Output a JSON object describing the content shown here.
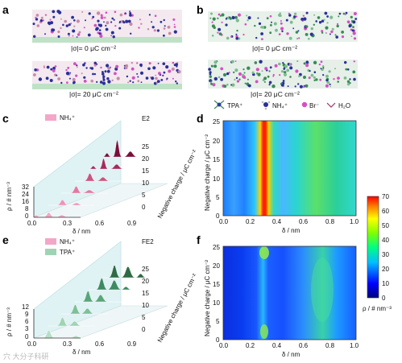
{
  "panels": {
    "a": {
      "letter": "a",
      "labels": [
        "|σ|= 0 μC cm⁻²",
        "|σ|= 20 μC cm⁻²"
      ]
    },
    "b": {
      "letter": "b",
      "labels": [
        "|σ|= 0 μC cm⁻²",
        "|σ|= 20 μC cm⁻²"
      ]
    },
    "legend": {
      "items": [
        "TPA⁺",
        "NH₄⁺",
        "Br⁻",
        "H₂O"
      ]
    },
    "c": {
      "letter": "c",
      "tag": "E2",
      "legend": [
        "NH₄⁺"
      ],
      "ylabel": "ρ / # nm⁻³",
      "xlabel": "δ / nm",
      "zlabel": "Negative charge / μC cm⁻²",
      "yticks": [
        "32",
        "24",
        "16",
        "8",
        "0"
      ],
      "xticks": [
        "0.0",
        "0.3",
        "0.6",
        "0.9"
      ],
      "zticks": [
        "0",
        "5",
        "10",
        "15",
        "20",
        "25"
      ]
    },
    "d": {
      "letter": "d",
      "ylabel": "Negative charge / μC cm⁻²",
      "xlabel": "δ / nm",
      "yticks": [
        "0",
        "5",
        "10",
        "15",
        "20",
        "25"
      ],
      "xticks": [
        "0.0",
        "0.2",
        "0.4",
        "0.6",
        "0.8",
        "1.0"
      ]
    },
    "e": {
      "letter": "e",
      "tag": "FE2",
      "legend": [
        "NH₄⁺",
        "TPA⁺"
      ],
      "ylabel": "ρ / # nm⁻³",
      "xlabel": "δ / nm",
      "zlabel": "Negative charge / μC cm⁻²",
      "yticks": [
        "12",
        "9",
        "6",
        "3",
        "0"
      ],
      "xticks": [
        "0.0",
        "0.3",
        "0.6",
        "0.9"
      ],
      "zticks": [
        "0",
        "5",
        "10",
        "15",
        "20",
        "25"
      ]
    },
    "f": {
      "letter": "f",
      "ylabel": "Negative charge / μC cm⁻²",
      "xlabel": "δ / nm",
      "yticks": [
        "0",
        "5",
        "10",
        "15",
        "20",
        "25"
      ],
      "xticks": [
        "0.0",
        "0.2",
        "0.4",
        "0.6",
        "0.8",
        "1.0"
      ]
    },
    "colorbar": {
      "ticks": [
        "70",
        "60",
        "50",
        "40",
        "30",
        "20",
        "10",
        "0"
      ],
      "label": "ρ / # nm⁻³",
      "range": [
        0,
        70
      ]
    }
  },
  "watermark": "穴 大分子科研",
  "colors": {
    "nh4": "#f4a6c8",
    "tpa": "#9fd3b4",
    "dark": "#7a0f3a",
    "green_dark": "#2f6b45"
  }
}
